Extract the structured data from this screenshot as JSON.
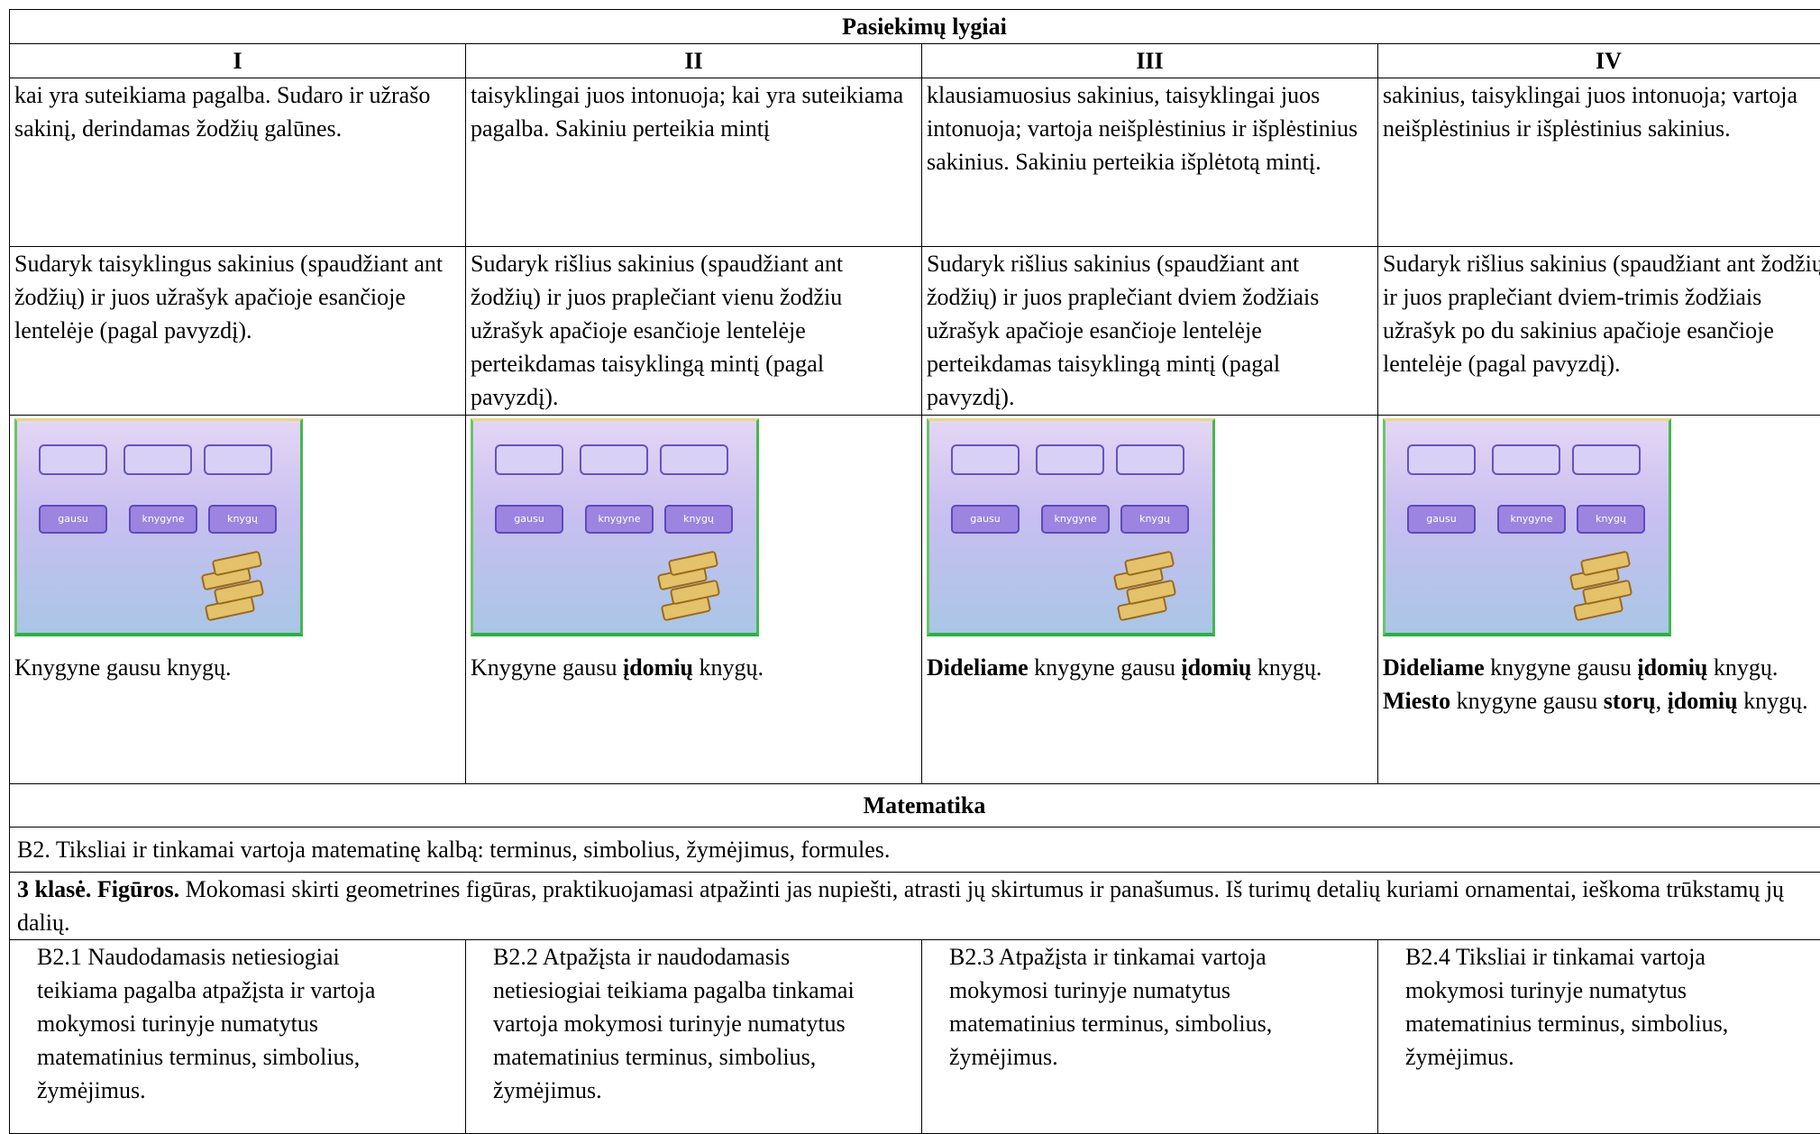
{
  "table": {
    "title": "Pasiekimų lygiai",
    "levels": [
      "I",
      "II",
      "III",
      "IV"
    ],
    "rows": [
      [
        "kai yra suteikiama pagalba. Sudaro ir užrašo sakinį, derindamas žodžių galūnes.",
        "taisyklingai juos intonuoja; kai yra suteikiama pagalba. Sakiniu perteikia mintį",
        "klausiamuosius sakinius, taisyklingai juos intonuoja; vartoja neišplėstinius ir išplėstinius sakinius. Sakiniu perteikia išplėtotą mintį.",
        "sakinius, taisyklingai juos intonuoja;  vartoja neišplėstinius ir išplėstinius sakinius."
      ],
      [
        "Sudaryk taisyklingus sakinius (spaudžiant ant žodžių) ir juos užrašyk apačioje esančioje lentelėje (pagal pavyzdį).",
        "Sudaryk rišlius sakinius (spaudžiant ant žodžių) ir juos  praplečiant vienu žodžiu užrašyk apačioje esančioje lentelėje perteikdamas taisyklingą mintį (pagal pavyzdį).",
        "Sudaryk rišlius sakinius (spaudžiant ant žodžių) ir juos  praplečiant dviem žodžiais užrašyk apačioje esančioje lentelėje perteikdamas taisyklingą mintį (pagal pavyzdį).",
        "Sudaryk rišlius sakinius (spaudžiant ant žodžių) ir juos  praplečiant dviem-trimis žodžiais užrašyk po du sakinius apačioje esančioje lentelėje (pagal pavyzdį)."
      ]
    ],
    "app_words": [
      [
        "gausu",
        "knygyne",
        "knygų"
      ],
      [
        "gausu",
        "knygyne",
        "knygų"
      ],
      [
        "gausu",
        "knygyne",
        "knygų"
      ],
      [
        "gausu",
        "knygyne",
        "knygų"
      ]
    ],
    "examples": [
      [
        [
          {
            "text": "Knygyne gausu knygų.",
            "bold": false
          }
        ]
      ],
      [
        [
          {
            "text": "Knygyne gausu ",
            "bold": false
          },
          {
            "text": "įdomių",
            "bold": true
          },
          {
            "text": " knygų.",
            "bold": false
          }
        ]
      ],
      [
        [
          {
            "text": "Dideliame",
            "bold": true
          },
          {
            "text": " knygyne gausu ",
            "bold": false
          },
          {
            "text": "įdomių",
            "bold": true
          },
          {
            "text": " knygų.",
            "bold": false
          }
        ]
      ],
      [
        [
          {
            "text": "Dideliame",
            "bold": true
          },
          {
            "text": " knygyne gausu ",
            "bold": false
          },
          {
            "text": "įdomių",
            "bold": true
          },
          {
            "text": " knygų.",
            "bold": false
          }
        ],
        [
          {
            "text": "Miesto",
            "bold": true
          },
          {
            "text": " knygyne gausu ",
            "bold": false
          },
          {
            "text": "storų",
            "bold": true
          },
          {
            "text": ", ",
            "bold": false
          },
          {
            "text": "įdomių",
            "bold": true
          },
          {
            "text": " knygų.",
            "bold": false
          }
        ]
      ]
    ]
  },
  "math": {
    "title": "Matematika",
    "goal": "B2. Tiksliai ir tinkamai vartoja matematinę kalbą: terminus, simbolius, žymėjimus, formules.",
    "grade_bold": "3 klasė. Figūros.",
    "grade_text": "Mokomasi skirti geometrines figūras, praktikuojamasi atpažinti jas nupiešti, atrasti jų skirtumus ir panašumus. Iš turimų detalių kuriami ornamentai, ieškoma trūkstamų jų dalių.",
    "levels": [
      "B2.1 Naudodamasis netiesiogiai teikiama pagalba atpažįsta ir vartoja mokymosi turinyje numatytus matematinius terminus, simbolius, žymėjimus.",
      "B2.2 Atpažįsta ir naudodamasis netiesiogiai teikiama pagalba tinkamai vartoja mokymosi turinyje numatytus matematinius terminus, simbolius, žymėjimus.",
      "B2.3 Atpažįsta ir tinkamai vartoja mokymosi turinyje numatytus matematinius terminus, simbolius, žymėjimus.",
      "B2.4 Tiksliai ir tinkamai vartoja mokymosi turinyje numatytus matematinius terminus, simbolius, žymėjimus."
    ]
  }
}
